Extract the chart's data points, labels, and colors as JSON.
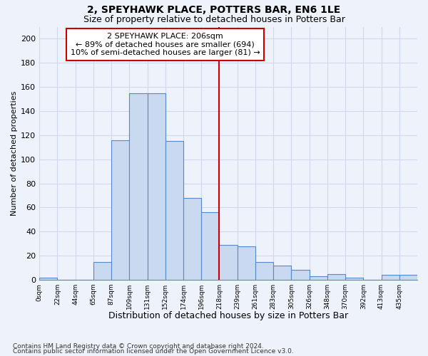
{
  "title": "2, SPEYHAWK PLACE, POTTERS BAR, EN6 1LE",
  "subtitle": "Size of property relative to detached houses in Potters Bar",
  "xlabel": "Distribution of detached houses by size in Potters Bar",
  "ylabel": "Number of detached properties",
  "bar_labels": [
    "0sqm",
    "22sqm",
    "44sqm",
    "65sqm",
    "87sqm",
    "109sqm",
    "131sqm",
    "152sqm",
    "174sqm",
    "196sqm",
    "218sqm",
    "239sqm",
    "261sqm",
    "283sqm",
    "305sqm",
    "326sqm",
    "348sqm",
    "370sqm",
    "392sqm",
    "413sqm",
    "435sqm"
  ],
  "bar_heights": [
    2,
    0,
    0,
    15,
    116,
    155,
    155,
    115,
    68,
    56,
    29,
    28,
    15,
    12,
    8,
    3,
    5,
    2,
    0,
    4,
    4
  ],
  "bar_color": "#c9d9f0",
  "bar_edge_color": "#5588cc",
  "background_color": "#eef2fb",
  "grid_color": "#d0d8ee",
  "ylim": [
    0,
    210
  ],
  "yticks": [
    0,
    20,
    40,
    60,
    80,
    100,
    120,
    140,
    160,
    180,
    200
  ],
  "vline_color": "#cc0000",
  "annotation_text": "2 SPEYHAWK PLACE: 206sqm\n← 89% of detached houses are smaller (694)\n10% of semi-detached houses are larger (81) →",
  "annotation_box_color": "#ffffff",
  "annotation_box_edge_color": "#cc0000",
  "footer_line1": "Contains HM Land Registry data © Crown copyright and database right 2024.",
  "footer_line2": "Contains public sector information licensed under the Open Government Licence v3.0.",
  "title_fontsize": 10,
  "subtitle_fontsize": 9,
  "ylabel_fontsize": 8,
  "xlabel_fontsize": 9,
  "annotation_fontsize": 8,
  "footer_fontsize": 6.5
}
